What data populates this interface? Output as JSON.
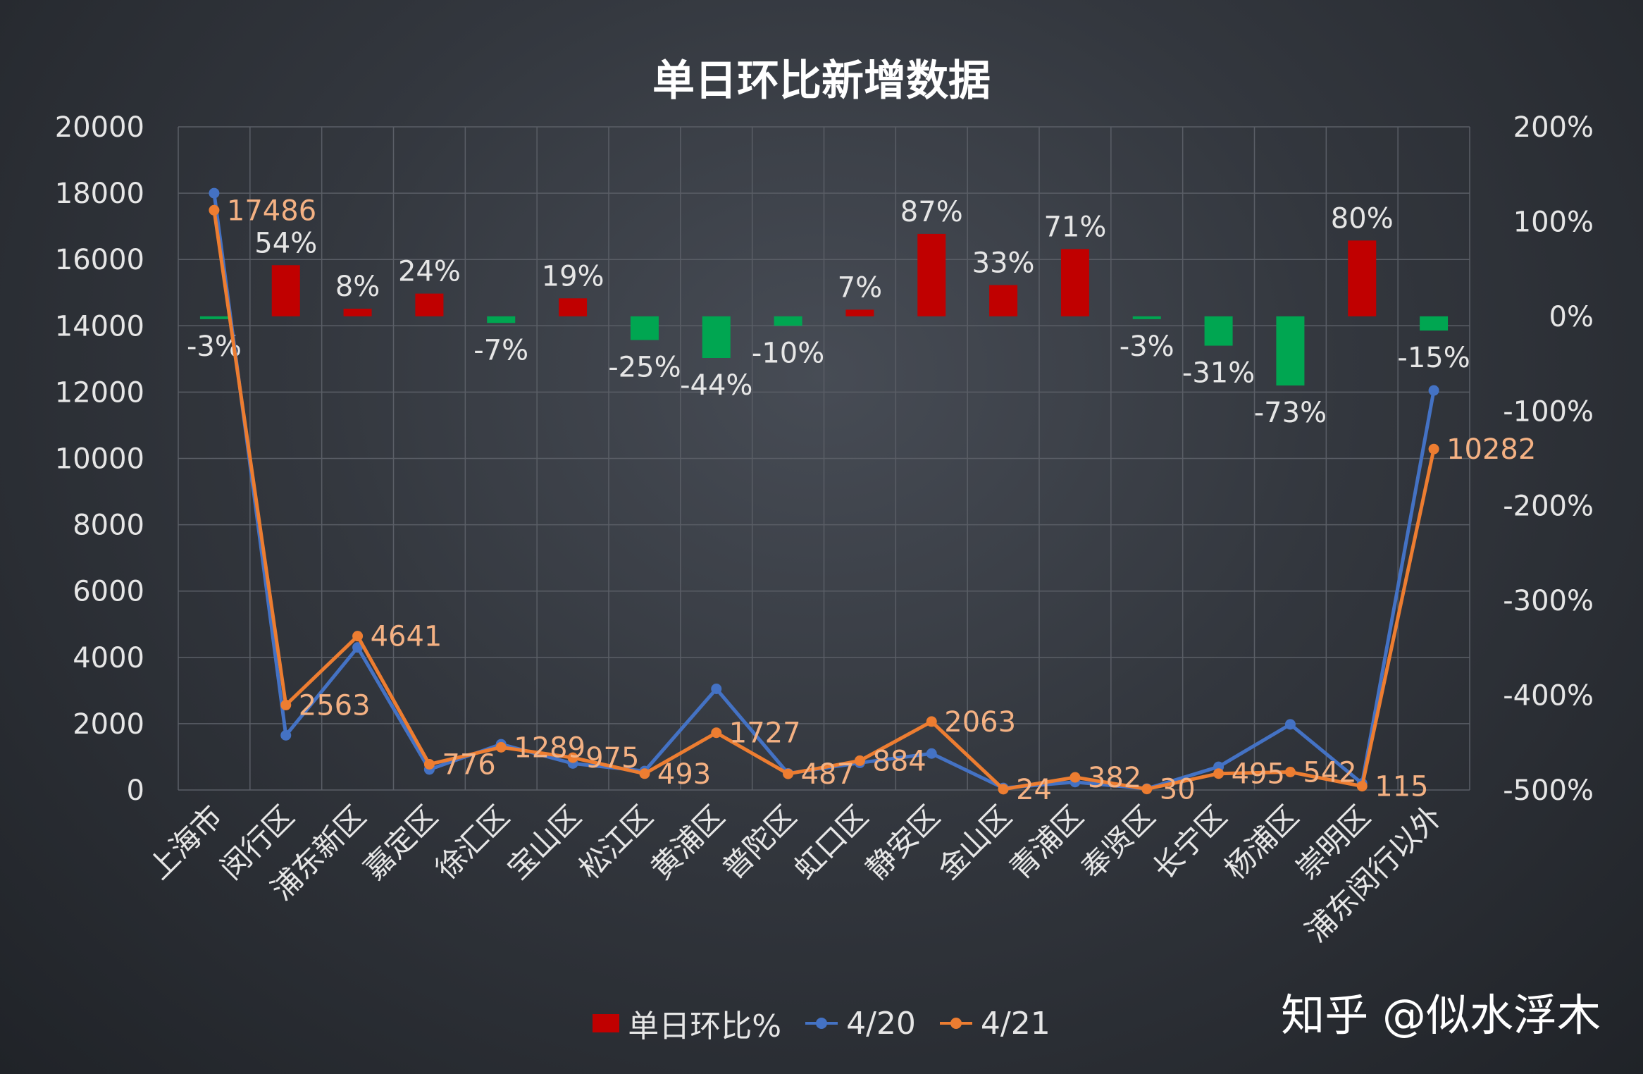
{
  "watermark": "知乎 @似水浮木",
  "colors": {
    "bar_up": "#c00000",
    "bar_down": "#00a651",
    "series_420": "#4472c4",
    "series_421": "#ed7d31",
    "label_421": "#f4b183",
    "axis_text": "#e6e6e6",
    "grid": "#5a5e66"
  },
  "chart_data": {
    "type": "bar+line",
    "title": "单日环比新增数据",
    "categories": [
      "上海市",
      "闵行区",
      "浦东新区",
      "嘉定区",
      "徐汇区",
      "宝山区",
      "松江区",
      "黄浦区",
      "普陀区",
      "虹口区",
      "静安区",
      "金山区",
      "青浦区",
      "奉贤区",
      "长宁区",
      "杨浦区",
      "崇明区",
      "浦东闵行以外"
    ],
    "left_axis": {
      "min": 0,
      "max": 20000,
      "step": 2000,
      "ticks": [
        "0",
        "2000",
        "4000",
        "6000",
        "8000",
        "10000",
        "12000",
        "14000",
        "16000",
        "18000",
        "20000"
      ]
    },
    "right_axis": {
      "min": -500,
      "max": 200,
      "step": 100,
      "ticks": [
        "-500%",
        "-400%",
        "-300%",
        "-200%",
        "-100%",
        "0%",
        "100%",
        "200%"
      ]
    },
    "grid": true,
    "legend_position": "bottom",
    "series": [
      {
        "name": "单日环比%",
        "kind": "bar",
        "axis": "right",
        "values": [
          -3,
          54,
          8,
          24,
          -7,
          19,
          -25,
          -44,
          -10,
          7,
          87,
          33,
          71,
          -3,
          -31,
          -73,
          80,
          -15
        ],
        "labels": [
          "-3%",
          "54%",
          "8%",
          "24%",
          "-7%",
          "19%",
          "-25%",
          "-44%",
          "-10%",
          "7%",
          "87%",
          "33%",
          "71%",
          "-3%",
          "-31%",
          "-73%",
          "80%",
          "-15%"
        ]
      },
      {
        "name": "4/20",
        "kind": "line",
        "axis": "left",
        "values": [
          18000,
          1650,
          4300,
          620,
          1380,
          800,
          570,
          3050,
          500,
          820,
          1100,
          60,
          240,
          40,
          700,
          1980,
          200,
          12050
        ]
      },
      {
        "name": "4/21",
        "kind": "line",
        "axis": "left",
        "values": [
          17486,
          2563,
          4641,
          776,
          1289,
          975,
          493,
          1727,
          487,
          884,
          2063,
          24,
          382,
          30,
          495,
          542,
          115,
          10282
        ],
        "labels": [
          "17486",
          "2563",
          "4641",
          "776",
          "1289",
          "975",
          "493",
          "1727",
          "487",
          "884",
          "2063",
          "24",
          "382",
          "30",
          "495",
          "542",
          "115",
          "10282"
        ]
      }
    ]
  }
}
